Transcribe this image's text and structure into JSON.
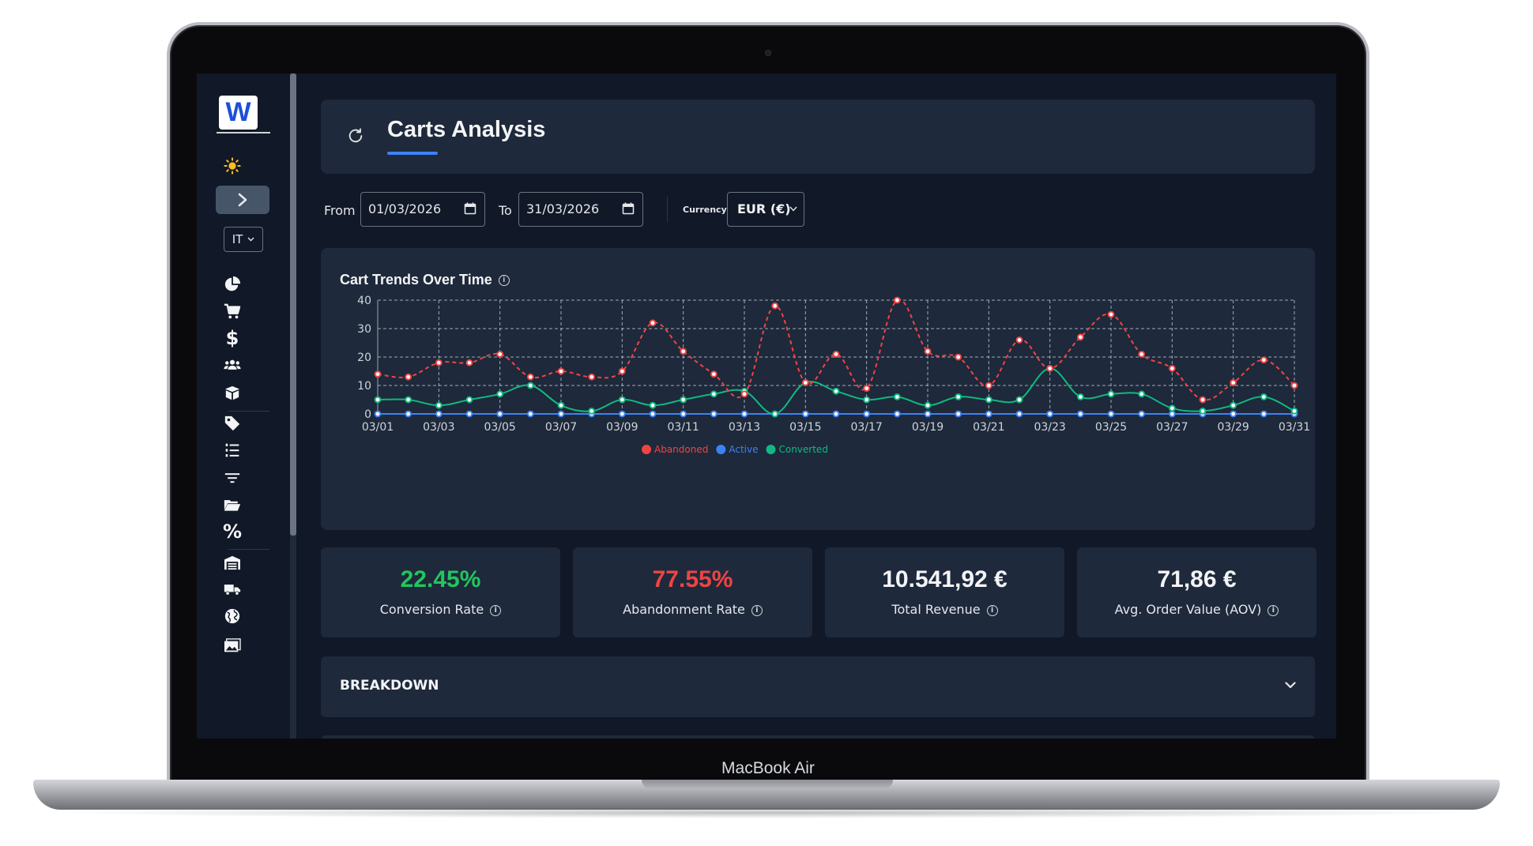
{
  "device": {
    "label": "MacBook Air"
  },
  "sidebar": {
    "logo": "W",
    "language": "IT",
    "icons": [
      "sun-icon",
      "chevron-right-icon",
      "pie-chart-icon",
      "cart-icon",
      "dollar-icon",
      "users-icon",
      "box-icon",
      "tag-icon",
      "ordered-list-icon",
      "filter-icon",
      "folder-open-icon",
      "percent-icon",
      "warehouse-icon",
      "truck-icon",
      "globe-icon",
      "images-icon"
    ]
  },
  "header": {
    "title": "Carts Analysis"
  },
  "filters": {
    "from_label": "From",
    "from_value": "01/03/2026",
    "to_label": "To",
    "to_value": "31/03/2026",
    "currency_label": "Currency",
    "currency_value": "EUR (€)"
  },
  "chart": {
    "title": "Cart Trends Over Time"
  },
  "chart_data": {
    "type": "line",
    "title": "Cart Trends Over Time",
    "x": [
      "03/01",
      "03/02",
      "03/03",
      "03/04",
      "03/05",
      "03/06",
      "03/07",
      "03/08",
      "03/09",
      "03/10",
      "03/11",
      "03/12",
      "03/13",
      "03/14",
      "03/15",
      "03/16",
      "03/17",
      "03/18",
      "03/19",
      "03/20",
      "03/21",
      "03/22",
      "03/23",
      "03/24",
      "03/25",
      "03/26",
      "03/27",
      "03/28",
      "03/29",
      "03/30",
      "03/31"
    ],
    "x_tick_labels": [
      "03/01",
      "03/03",
      "03/05",
      "03/07",
      "03/09",
      "03/11",
      "03/13",
      "03/15",
      "03/17",
      "03/19",
      "03/21",
      "03/23",
      "03/25",
      "03/27",
      "03/29",
      "03/31"
    ],
    "y_ticks": [
      0,
      10,
      20,
      30,
      40
    ],
    "ylim": [
      0,
      40
    ],
    "grid": true,
    "legend": "bottom",
    "series": [
      {
        "name": "Abandoned",
        "color": "#ef4444",
        "style": "dashed",
        "values": [
          14,
          13,
          18,
          18,
          21,
          13,
          15,
          13,
          15,
          32,
          22,
          14,
          7,
          38,
          11,
          21,
          9,
          40,
          22,
          20,
          10,
          26,
          16,
          27,
          35,
          21,
          16,
          5,
          11,
          19,
          10
        ]
      },
      {
        "name": "Active",
        "color": "#3b82f6",
        "style": "solid",
        "values": [
          0,
          0,
          0,
          0,
          0,
          0,
          0,
          0,
          0,
          0,
          0,
          0,
          0,
          0,
          0,
          0,
          0,
          0,
          0,
          0,
          0,
          0,
          0,
          0,
          0,
          0,
          0,
          0,
          0,
          0,
          0
        ]
      },
      {
        "name": "Converted",
        "color": "#10b981",
        "style": "solid",
        "values": [
          5,
          5,
          3,
          5,
          7,
          10,
          3,
          1,
          5,
          3,
          5,
          7,
          8,
          0,
          11,
          8,
          5,
          6,
          3,
          6,
          5,
          5,
          16,
          6,
          7,
          7,
          2,
          1,
          3,
          6,
          1
        ]
      }
    ]
  },
  "kpis": [
    {
      "value": "22.45%",
      "label": "Conversion Rate",
      "color": "#22c55e"
    },
    {
      "value": "77.55%",
      "label": "Abandonment Rate",
      "color": "#ef4444"
    },
    {
      "value": "10.541,92 €",
      "label": "Total Revenue",
      "color": "#f3f4f6"
    },
    {
      "value": "71,86 €",
      "label": "Avg. Order Value (AOV)",
      "color": "#f3f4f6"
    }
  ],
  "breakdown": {
    "title": "BREAKDOWN"
  }
}
